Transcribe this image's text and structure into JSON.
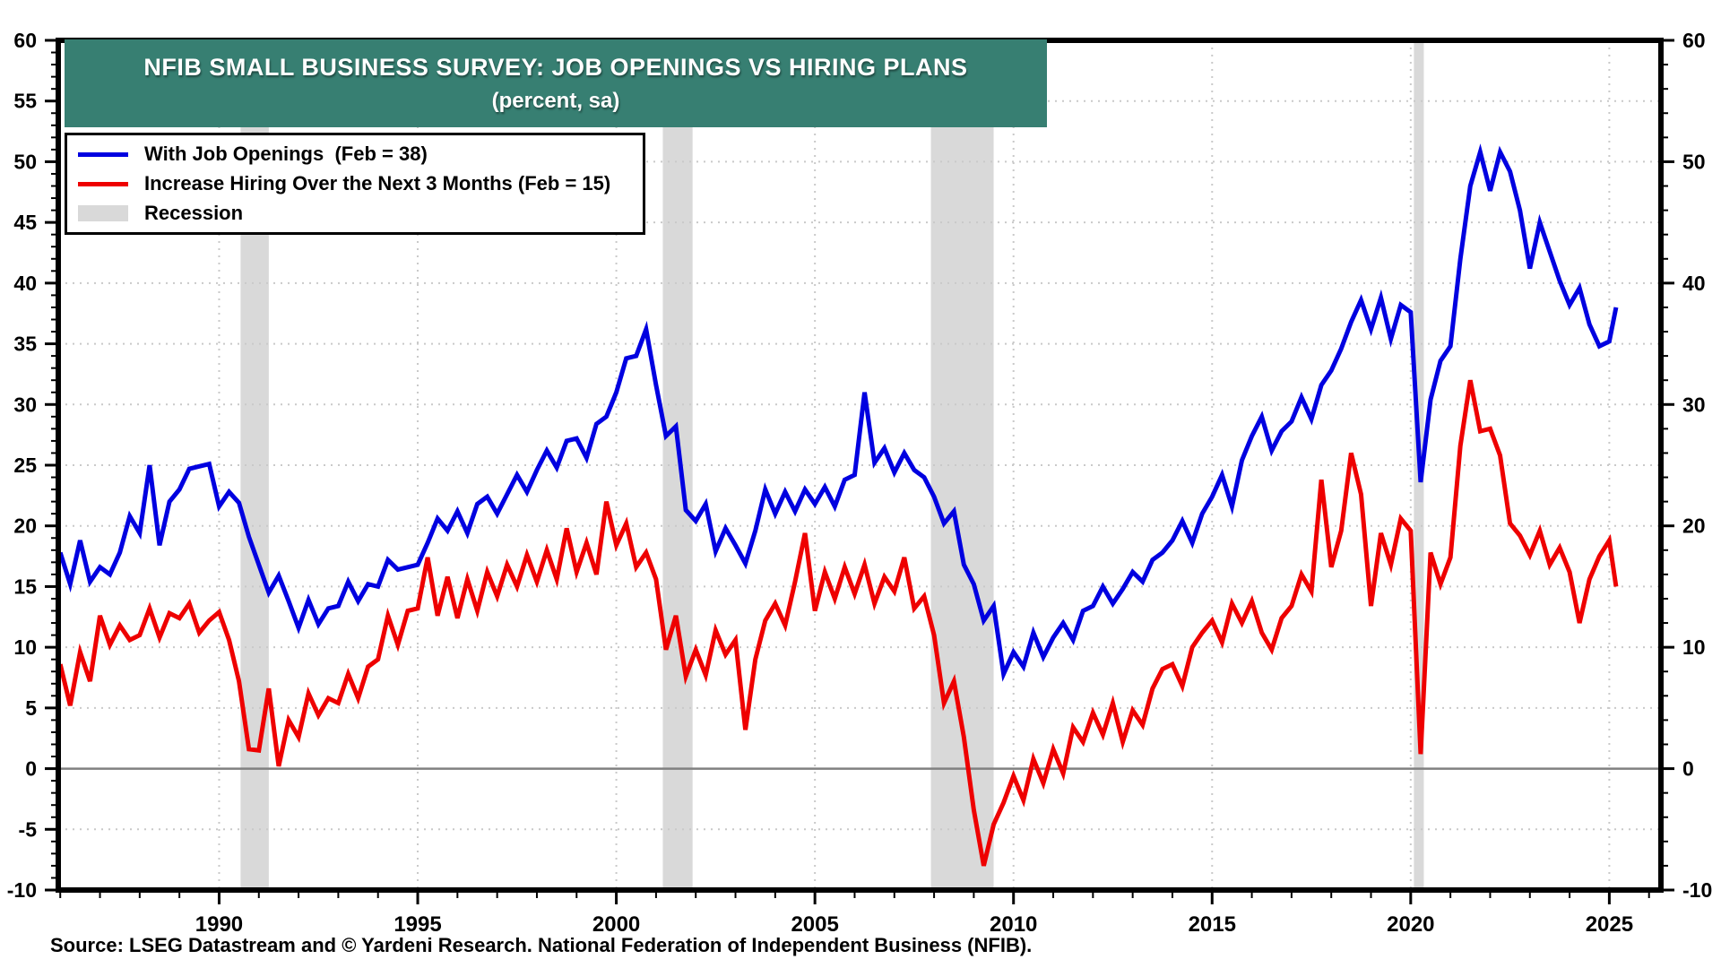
{
  "header": {
    "title": "NFIB SMALL BUSINESS SURVEY: JOB OPENINGS VS HIRING PLANS",
    "subtitle": "(percent, sa)",
    "banner_color": "#377f72"
  },
  "legend": {
    "items": [
      {
        "label": "With Job Openings  (Feb = 38)",
        "swatch": "line",
        "color": "#0000e0"
      },
      {
        "label": "Increase Hiring Over the Next 3 Months (Feb = 15)",
        "swatch": "line",
        "color": "#ee0000"
      },
      {
        "label": "Recession",
        "swatch": "box",
        "color": "#d9d9d9"
      }
    ]
  },
  "footer": {
    "source": "Source: LSEG Datastream and © Yardeni Research. National Federation of Independent Business (NFIB)."
  },
  "colors": {
    "openings_line": "#0000e0",
    "hiring_line": "#ee0000",
    "recession_band": "#d9d9d9",
    "gridline": "#c9c9c9",
    "zero_line": "#808080",
    "axis": "#000000"
  },
  "chart_data": {
    "type": "line",
    "title": "NFIB SMALL BUSINESS SURVEY: JOB OPENINGS VS HIRING PLANS (percent, sa)",
    "xlabel": "",
    "ylabel": "percent, sa",
    "xlim": [
      1985.95,
      2026.3
    ],
    "ylim": [
      -10,
      60
    ],
    "x_tick_labels": [
      1990,
      1995,
      2000,
      2005,
      2010,
      2015,
      2020,
      2025
    ],
    "y_tick_labels_left": [
      60,
      55,
      50,
      45,
      40,
      35,
      30,
      25,
      20,
      15,
      10,
      5,
      0,
      -5,
      -10
    ],
    "y_tick_labels_right": [
      60,
      50,
      40,
      30,
      20,
      10,
      0,
      -10
    ],
    "grid": true,
    "legend_position": "top-left",
    "recessions": [
      [
        1990.54,
        1991.25
      ],
      [
        2001.17,
        2001.92
      ],
      [
        2007.92,
        2009.5
      ],
      [
        2020.08,
        2020.33
      ]
    ],
    "series": [
      {
        "name": "With Job Openings",
        "latest": "Feb = 38",
        "color": "#0000e0",
        "x_start": 1986.0,
        "x_step": 0.25,
        "values": [
          17.8,
          15.2,
          18.8,
          15.4,
          16.6,
          16.0,
          17.8,
          20.8,
          19.4,
          25.0,
          18.4,
          22.0,
          23.0,
          24.7,
          24.9,
          25.1,
          21.6,
          22.8,
          21.9,
          19.1,
          16.8,
          14.5,
          15.9,
          13.8,
          11.6,
          13.9,
          11.9,
          13.2,
          13.4,
          15.4,
          13.8,
          15.2,
          15.0,
          17.2,
          16.4,
          16.6,
          16.8,
          18.6,
          20.6,
          19.6,
          21.2,
          19.4,
          21.8,
          22.4,
          21.0,
          22.6,
          24.2,
          22.8,
          24.6,
          26.2,
          24.8,
          27.0,
          27.2,
          25.6,
          28.4,
          29.0,
          31.0,
          33.8,
          34.0,
          36.2,
          31.6,
          27.4,
          28.2,
          21.3,
          20.4,
          21.8,
          17.9,
          19.8,
          18.4,
          16.9,
          19.6,
          23.0,
          21.0,
          22.8,
          21.2,
          23.0,
          21.8,
          23.2,
          21.6,
          23.8,
          24.2,
          31.0,
          25.2,
          26.4,
          24.4,
          26.0,
          24.6,
          24.0,
          22.4,
          20.2,
          21.2,
          16.8,
          15.2,
          12.2,
          13.4,
          7.8,
          9.6,
          8.4,
          11.2,
          9.2,
          10.8,
          12.0,
          10.6,
          13.0,
          13.4,
          15.0,
          13.6,
          14.8,
          16.2,
          15.4,
          17.2,
          17.8,
          18.8,
          20.4,
          18.6,
          21.0,
          22.4,
          24.2,
          21.6,
          25.4,
          27.4,
          29.0,
          26.2,
          27.8,
          28.6,
          30.6,
          28.8,
          31.6,
          32.8,
          34.6,
          36.8,
          38.6,
          36.2,
          38.8,
          35.4,
          38.2,
          37.6,
          23.6,
          30.4,
          33.6,
          34.8,
          42.0,
          48.0,
          50.8,
          47.6,
          50.8,
          49.2,
          46.0,
          41.2,
          45.0,
          42.6,
          40.2,
          38.2,
          39.6,
          36.6,
          34.8,
          35.2
        ],
        "last_point": [
          2025.17,
          38
        ]
      },
      {
        "name": "Increase Hiring Over the Next 3 Months",
        "latest": "Feb = 15",
        "color": "#ee0000",
        "x_start": 1986.0,
        "x_step": 0.25,
        "values": [
          8.6,
          5.2,
          9.6,
          7.2,
          12.6,
          10.2,
          11.8,
          10.6,
          11.0,
          13.2,
          10.8,
          12.8,
          12.4,
          13.6,
          11.2,
          12.2,
          12.9,
          10.6,
          7.2,
          1.6,
          1.5,
          6.6,
          0.2,
          4.0,
          2.6,
          6.2,
          4.4,
          5.8,
          5.4,
          7.8,
          5.8,
          8.4,
          9.0,
          12.6,
          10.2,
          13.0,
          13.2,
          17.4,
          12.6,
          15.8,
          12.4,
          15.6,
          13.0,
          16.2,
          14.2,
          16.8,
          15.0,
          17.6,
          15.4,
          18.0,
          15.6,
          19.8,
          16.2,
          18.6,
          16.0,
          22.0,
          18.4,
          20.2,
          16.6,
          17.8,
          15.6,
          9.8,
          12.6,
          7.6,
          9.8,
          7.7,
          11.4,
          9.4,
          10.6,
          3.2,
          9.0,
          12.2,
          13.6,
          11.8,
          15.4,
          19.4,
          13.0,
          16.2,
          14.0,
          16.6,
          14.4,
          16.8,
          13.6,
          15.8,
          14.6,
          17.4,
          13.2,
          14.2,
          11.0,
          5.4,
          7.2,
          2.6,
          -3.4,
          -8.0,
          -4.6,
          -2.8,
          -0.6,
          -2.6,
          0.8,
          -1.2,
          1.6,
          -0.4,
          3.4,
          2.2,
          4.6,
          2.8,
          5.4,
          2.2,
          4.8,
          3.6,
          6.6,
          8.2,
          8.6,
          6.8,
          10.0,
          11.2,
          12.2,
          10.4,
          13.6,
          12.0,
          13.8,
          11.2,
          9.8,
          12.4,
          13.4,
          16.0,
          14.6,
          23.8,
          16.6,
          19.6,
          26.0,
          22.6,
          13.4,
          19.4,
          16.8,
          20.6,
          19.6,
          1.2,
          17.8,
          15.2,
          17.4,
          26.6,
          32.0,
          27.8,
          28.0,
          25.8,
          20.2,
          19.2,
          17.6,
          19.6,
          16.8,
          18.2,
          16.2,
          12.0,
          15.6,
          17.5,
          18.8
        ],
        "last_point": [
          2025.17,
          15
        ]
      }
    ]
  }
}
